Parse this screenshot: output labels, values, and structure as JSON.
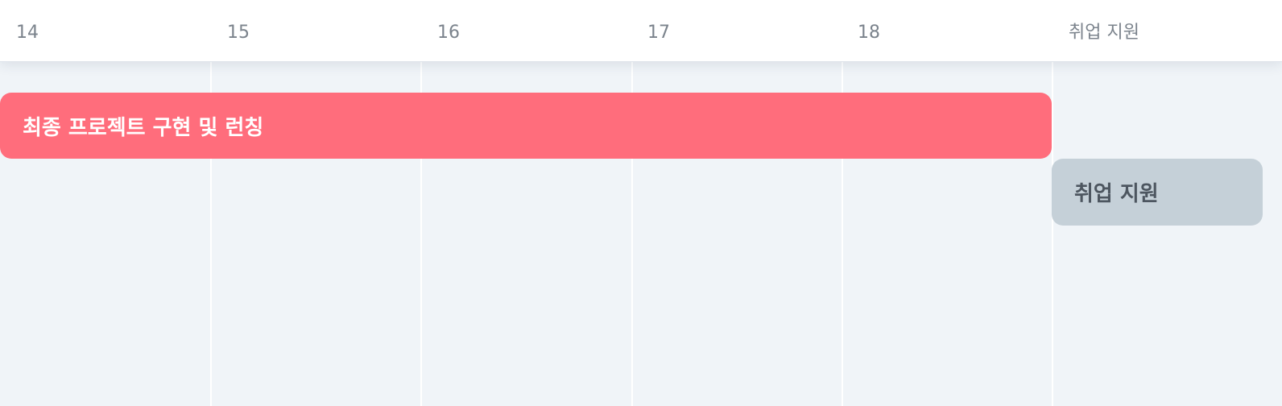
{
  "timeline": {
    "columns": [
      {
        "label": "14"
      },
      {
        "label": "15"
      },
      {
        "label": "16"
      },
      {
        "label": "17"
      },
      {
        "label": "18"
      },
      {
        "label": "취업 지원"
      }
    ]
  },
  "events": [
    {
      "title": "최종 프로젝트 구현 및 런칭",
      "color": "#ff6d7c"
    },
    {
      "title": "취업 지원",
      "color": "#c5d0d8"
    }
  ]
}
